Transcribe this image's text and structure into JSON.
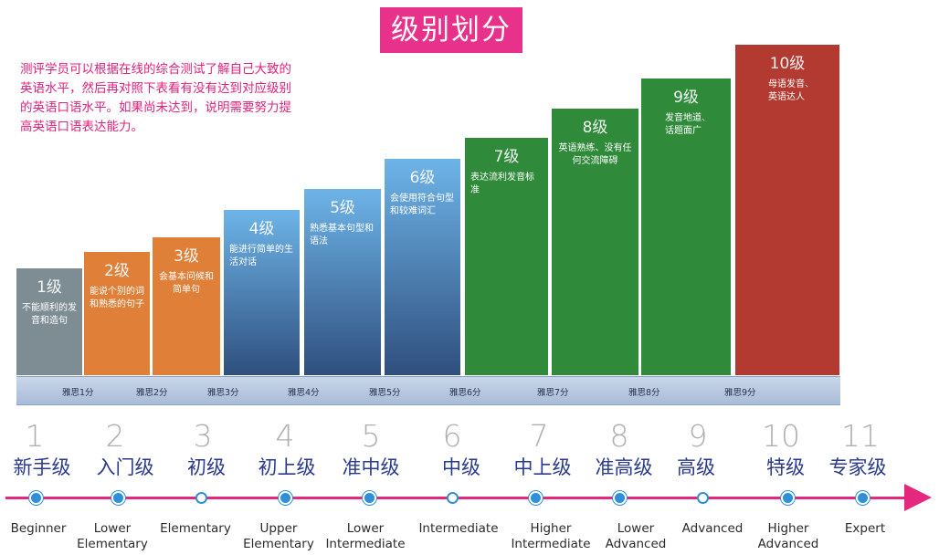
{
  "title": "级别划分",
  "intro": "测评学员可以根据在线的综合测试了解自己大致的英语水平，然后再对照下表看有没有达到对应级别的英语口语水平。如果尚未达到，说明需要努力提高英语口语表达能力。",
  "bars": [
    {
      "level": "1级",
      "desc": "不能顺利的发音和造句"
    },
    {
      "level": "2级",
      "desc": "能说个别的词和熟悉的句子"
    },
    {
      "level": "3级",
      "desc": "会基本问候和简单句"
    },
    {
      "level": "4级",
      "desc": "能进行简单的生活对话"
    },
    {
      "level": "5级",
      "desc": "熟悉基本句型和语法"
    },
    {
      "level": "6级",
      "desc": "会使用符合句型和较难词汇"
    },
    {
      "level": "7级",
      "desc": "表达流利发音标准"
    },
    {
      "level": "8级",
      "desc": "英语熟练、没有任何交流障碍"
    },
    {
      "level": "9级",
      "desc": "发音地道、话题面广"
    },
    {
      "level": "10级",
      "desc": "母语发音、英语达人"
    }
  ],
  "ielts": [
    "雅思1分",
    "雅思2分",
    "雅思3分",
    "雅思4分",
    "雅思5分",
    "雅思6分",
    "雅思7分",
    "雅思8分",
    "雅思9分"
  ],
  "scale": [
    {
      "num": "1",
      "cn": "新手级",
      "en": "Beginner",
      "marker": "filled"
    },
    {
      "num": "2",
      "cn": "入门级",
      "en": "Lower Elementary",
      "marker": "filled"
    },
    {
      "num": "3",
      "cn": "初级",
      "en": "Elementary",
      "marker": "hollow"
    },
    {
      "num": "4",
      "cn": "初上级",
      "en": "Upper Elementary",
      "marker": "filled"
    },
    {
      "num": "5",
      "cn": "准中级",
      "en": "Lower Intermediate",
      "marker": "filled"
    },
    {
      "num": "6",
      "cn": "中级",
      "en": "Intermediate",
      "marker": "hollow"
    },
    {
      "num": "7",
      "cn": "中上级",
      "en": "Higher Intermediate",
      "marker": "filled"
    },
    {
      "num": "8",
      "cn": "准高级",
      "en": "Lower Advanced",
      "marker": "filled"
    },
    {
      "num": "9",
      "cn": "高级",
      "en": "Advanced",
      "marker": "hollow"
    },
    {
      "num": "10",
      "cn": "特级",
      "en": "Higher Advanced",
      "marker": "filled"
    },
    {
      "num": "11",
      "cn": "专家级",
      "en": "Expert",
      "marker": "filled"
    }
  ],
  "colors": {
    "accent": "#e8318a",
    "bar1": "#7e8c94",
    "bar2_3": "#e07f38",
    "bar4_6": "#3f84c8",
    "bar7_9": "#2f8a3a",
    "bar10": "#b33a30",
    "scale_text": "#2a3a8e",
    "marker": "#2f8fd8"
  }
}
